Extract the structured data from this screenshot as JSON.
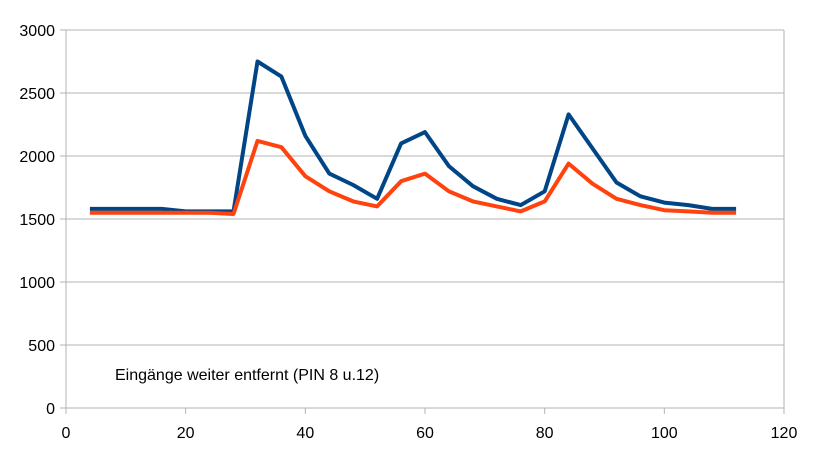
{
  "chart_data": {
    "type": "line",
    "title": "",
    "xlabel": "",
    "ylabel": "",
    "xlim": [
      0,
      120
    ],
    "ylim": [
      0,
      3000
    ],
    "x_ticks": [
      0,
      20,
      40,
      60,
      80,
      100,
      120
    ],
    "y_ticks": [
      0,
      500,
      1000,
      1500,
      2000,
      2500,
      3000
    ],
    "grid": "horizontal",
    "legend": "none",
    "annotation": "Eingänge weiter entfernt (PIN 8 u.12)",
    "series": [
      {
        "color": "#004586",
        "x": [
          4,
          8,
          12,
          16,
          20,
          24,
          28,
          32,
          36,
          40,
          44,
          48,
          52,
          56,
          60,
          64,
          68,
          72,
          76,
          80,
          84,
          88,
          92,
          96,
          100,
          104,
          108,
          112
        ],
        "values": [
          1580,
          1580,
          1580,
          1580,
          1560,
          1560,
          1560,
          2750,
          2630,
          2160,
          1860,
          1770,
          1660,
          2100,
          2190,
          1920,
          1760,
          1660,
          1610,
          1720,
          2330,
          2060,
          1790,
          1680,
          1630,
          1610,
          1580,
          1580
        ]
      },
      {
        "color": "#ff420e",
        "x": [
          4,
          8,
          12,
          16,
          20,
          24,
          28,
          32,
          36,
          40,
          44,
          48,
          52,
          56,
          60,
          64,
          68,
          72,
          76,
          80,
          84,
          88,
          92,
          96,
          100,
          104,
          108,
          112
        ],
        "values": [
          1550,
          1550,
          1550,
          1550,
          1550,
          1550,
          1540,
          2120,
          2070,
          1840,
          1720,
          1640,
          1600,
          1800,
          1860,
          1720,
          1640,
          1600,
          1560,
          1640,
          1940,
          1780,
          1660,
          1610,
          1570,
          1560,
          1550,
          1550
        ]
      }
    ]
  }
}
